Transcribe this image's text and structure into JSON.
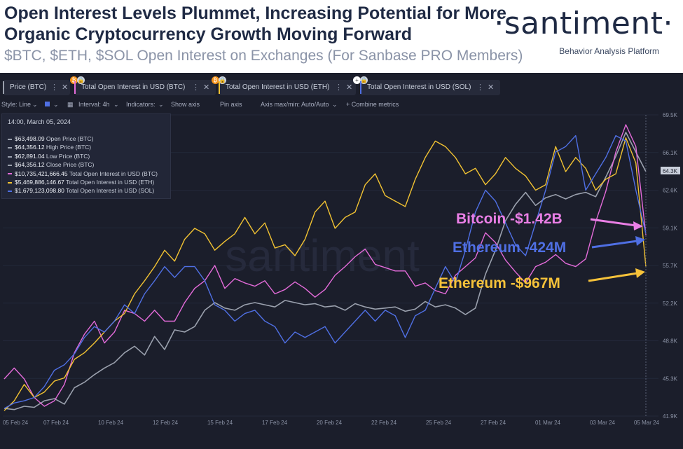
{
  "header": {
    "title": "Open Interest Levels Plummet, Increasing Potential for More Organic Cryptocurrency Growth Moving Forward",
    "subtitle": "$BTC, $ETH, $SOL Open Interest on Exchanges (For Sanbase PRO Members)",
    "brand": "·santiment·",
    "tagline": "Behavior Analysis Platform"
  },
  "tabs": [
    {
      "label": "Price (BTC)",
      "color": "#9aa0ad"
    },
    {
      "label": "Total Open Interest in USD (BTC)",
      "color": "#e36bd9"
    },
    {
      "label": "Total Open Interest in USD (ETH)",
      "color": "#f1c232"
    },
    {
      "label": "Total Open Interest in USD (SOL)",
      "color": "#4f6fe3"
    }
  ],
  "toolbar": {
    "style": "Style: Line",
    "interval": "Interval: 4h",
    "indicators": "Indicators:",
    "show_axis": "Show axis",
    "pin_axis": "Pin axis",
    "axis_max_min": "Axis max/min: Auto/Auto",
    "combine": "+ Combine metrics"
  },
  "legend": {
    "date": "14:00, March 05, 2024",
    "rows": [
      {
        "value": "$63,498.09",
        "label": "Open Price (BTC)",
        "color": "#9aa0ad"
      },
      {
        "value": "$64,356.12",
        "label": "High Price (BTC)",
        "color": "#9aa0ad"
      },
      {
        "value": "$62,891.04",
        "label": "Low Price (BTC)",
        "color": "#9aa0ad"
      },
      {
        "value": "$64,356.12",
        "label": "Close Price (BTC)",
        "color": "#9aa0ad"
      },
      {
        "value": "$10,735,421,666.45",
        "label": "Total Open Interest in USD (BTC)",
        "color": "#e36bd9"
      },
      {
        "value": "$5,469,886,146.67",
        "label": "Total Open Interest in USD (ETH)",
        "color": "#f1c232"
      },
      {
        "value": "$1,679,123,098.80",
        "label": "Total Open Interest in USD (SOL)",
        "color": "#4f6fe3"
      }
    ]
  },
  "watermark": "santiment",
  "annotations": [
    {
      "text": "Bitcoin -$1.42B",
      "color": "#ea7fe6"
    },
    {
      "text": "Ethereum -424M",
      "color": "#4f6fe3"
    },
    {
      "text": "Ethereum -$967M",
      "color": "#f6c23a"
    }
  ],
  "chart_data": {
    "type": "line",
    "x_ticks": [
      "05 Feb 24",
      "07 Feb 24",
      "10 Feb 24",
      "12 Feb 24",
      "15 Feb 24",
      "17 Feb 24",
      "20 Feb 24",
      "22 Feb 24",
      "25 Feb 24",
      "27 Feb 24",
      "01 Mar 24",
      "03 Mar 24",
      "05 Mar 24"
    ],
    "y_ticks": [
      "69.5K",
      "66.1K",
      "62.6K",
      "59.1K",
      "55.7K",
      "52.2K",
      "48.8K",
      "45.3K",
      "41.9K"
    ],
    "current_price_label": "64.3K",
    "ylim": [
      41900,
      69500
    ],
    "series": [
      {
        "name": "Price (BTC)",
        "color": "#9aa0ad",
        "values": [
          42600,
          42500,
          42800,
          42700,
          43300,
          43500,
          43000,
          44500,
          45000,
          45700,
          46300,
          46800,
          47700,
          48300,
          47500,
          49200,
          48000,
          49800,
          49600,
          50100,
          51600,
          52300,
          51800,
          51600,
          52100,
          52300,
          52100,
          51900,
          52500,
          52300,
          52100,
          52200,
          51900,
          52000,
          51600,
          52200,
          51900,
          51700,
          51800,
          51900,
          51500,
          51700,
          52400,
          51900,
          52100,
          51800,
          51200,
          51800,
          54900,
          57100,
          59800,
          61300,
          62400,
          61200,
          61900,
          62200,
          61800,
          62200,
          62400,
          62000,
          63800,
          65700,
          67900,
          66100,
          64300
        ]
      },
      {
        "name": "Total Open Interest in USD (BTC)",
        "color": "#e36bd9",
        "values": [
          45300,
          46300,
          45300,
          43600,
          42800,
          43300,
          44800,
          47700,
          49400,
          50600,
          48600,
          49600,
          51600,
          51300,
          50600,
          51600,
          50600,
          50600,
          52300,
          53600,
          54300,
          55700,
          53600,
          54500,
          54100,
          53800,
          54300,
          53100,
          53500,
          54200,
          53600,
          52800,
          53500,
          54800,
          55600,
          56500,
          57200,
          55800,
          55500,
          55200,
          55200,
          53800,
          54100,
          53400,
          53100,
          54800,
          55600,
          56400,
          58700,
          57800,
          56200,
          55100,
          54100,
          55600,
          56000,
          56700,
          55900,
          55600,
          56300,
          59700,
          62500,
          66100,
          68600,
          66600,
          58500
        ]
      },
      {
        "name": "Total Open Interest in USD (ETH)",
        "color": "#f1c232",
        "values": [
          42400,
          43300,
          44800,
          43600,
          44100,
          45100,
          45400,
          47100,
          47700,
          48600,
          49600,
          50600,
          51300,
          53100,
          54300,
          55600,
          57100,
          56100,
          58100,
          59100,
          58600,
          57100,
          57900,
          58600,
          60100,
          58600,
          59600,
          57300,
          57600,
          56600,
          58100,
          60600,
          61600,
          59100,
          60100,
          60600,
          63100,
          64100,
          62100,
          61600,
          61100,
          63600,
          65600,
          67100,
          66600,
          65600,
          64100,
          64600,
          63100,
          64100,
          65600,
          64600,
          63900,
          62600,
          63100,
          66600,
          64300,
          65600,
          64600,
          62600,
          63600,
          64100,
          67400,
          65100,
          55600
        ]
      },
      {
        "name": "Total Open Interest in USD (SOL)",
        "color": "#4f6fe3",
        "values": [
          42600,
          43100,
          43300,
          43600,
          44600,
          46100,
          46600,
          47600,
          49100,
          50100,
          49600,
          50600,
          52100,
          51300,
          53100,
          54300,
          55600,
          54600,
          55600,
          55600,
          54300,
          52100,
          51600,
          50600,
          51300,
          51600,
          50600,
          50100,
          48600,
          49600,
          49100,
          49600,
          50100,
          48600,
          49600,
          50600,
          51600,
          50600,
          51600,
          51100,
          49100,
          51100,
          51600,
          53600,
          55600,
          54100,
          57100,
          60600,
          62600,
          61600,
          59600,
          57600,
          56600,
          59600,
          62600,
          66100,
          66600,
          67600,
          62600,
          64100,
          65600,
          67600,
          67100,
          62600,
          58600
        ]
      }
    ]
  }
}
